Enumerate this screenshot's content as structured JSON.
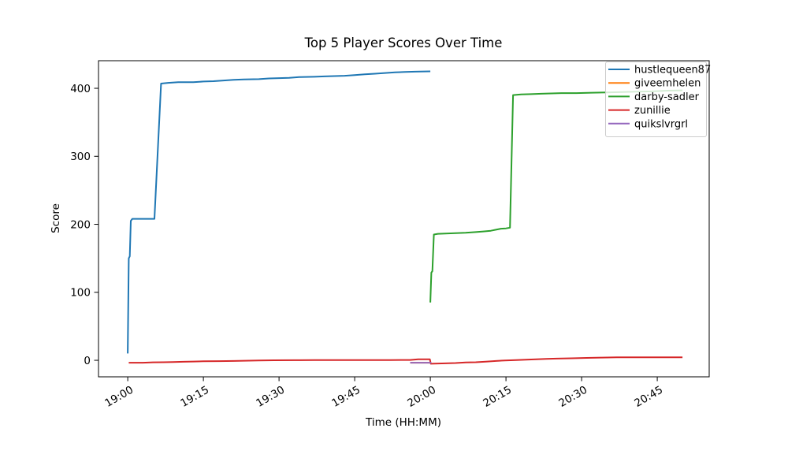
{
  "chart_data": {
    "type": "line",
    "title": "Top 5 Player Scores Over Time",
    "xlabel": "Time (HH:MM)",
    "ylabel": "Score",
    "x_unit": "minutes_after_19:00",
    "x_range_minutes": [
      -5.8,
      115.3
    ],
    "y_range": [
      -24.3,
      440.6
    ],
    "grid": false,
    "x_ticks": [
      {
        "minutes": 0,
        "label": "19:00"
      },
      {
        "minutes": 15,
        "label": "19:15"
      },
      {
        "minutes": 30,
        "label": "19:30"
      },
      {
        "minutes": 45,
        "label": "19:45"
      },
      {
        "minutes": 60,
        "label": "20:00"
      },
      {
        "minutes": 75,
        "label": "20:15"
      },
      {
        "minutes": 90,
        "label": "20:30"
      },
      {
        "minutes": 105,
        "label": "20:45"
      }
    ],
    "y_ticks": [
      0,
      100,
      200,
      300,
      400
    ],
    "legend": {
      "position": "upper right",
      "frame_color": "#cccccc",
      "fill_opacity": 0.8
    },
    "series": [
      {
        "name": "hustlequeen87",
        "color": "#1f77b4",
        "points": [
          [
            0,
            10
          ],
          [
            0.2,
            150
          ],
          [
            0.4,
            153
          ],
          [
            0.6,
            205
          ],
          [
            0.9,
            208
          ],
          [
            5.3,
            208
          ],
          [
            6.6,
            407
          ],
          [
            8,
            408
          ],
          [
            10,
            409
          ],
          [
            13,
            409
          ],
          [
            15,
            410
          ],
          [
            17,
            410.5
          ],
          [
            19,
            411.5
          ],
          [
            21,
            412.5
          ],
          [
            23,
            413
          ],
          [
            26,
            413.5
          ],
          [
            28,
            414.5
          ],
          [
            30,
            415
          ],
          [
            32,
            415.5
          ],
          [
            34,
            416.5
          ],
          [
            37,
            417
          ],
          [
            39,
            417.5
          ],
          [
            41,
            418
          ],
          [
            43,
            418.5
          ],
          [
            45,
            419.5
          ],
          [
            47,
            420.5
          ],
          [
            49,
            421.5
          ],
          [
            51,
            422.5
          ],
          [
            53,
            423.5
          ],
          [
            55,
            424
          ],
          [
            57,
            424.5
          ],
          [
            60,
            425
          ]
        ]
      },
      {
        "name": "giveemhelen",
        "color": "#ff7f0e",
        "points": [
          [
            56,
            -3.5
          ],
          [
            60.2,
            -3.5
          ]
        ]
      },
      {
        "name": "darby-sadler",
        "color": "#2ca02c",
        "points": [
          [
            60,
            85
          ],
          [
            60.2,
            129
          ],
          [
            60.4,
            131
          ],
          [
            60.7,
            185
          ],
          [
            61.5,
            186
          ],
          [
            63,
            186.5
          ],
          [
            65,
            187
          ],
          [
            67,
            187.5
          ],
          [
            69,
            188.5
          ],
          [
            70.5,
            189.5
          ],
          [
            72,
            190.5
          ],
          [
            73,
            192
          ],
          [
            74,
            193.5
          ],
          [
            75,
            194
          ],
          [
            75.8,
            195
          ],
          [
            76.4,
            390
          ],
          [
            78,
            391
          ],
          [
            80,
            391.5
          ],
          [
            82,
            392
          ],
          [
            84,
            392.5
          ],
          [
            86,
            393
          ],
          [
            89,
            393
          ],
          [
            92,
            393.5
          ],
          [
            95,
            394
          ],
          [
            98,
            394.5
          ],
          [
            101,
            395
          ],
          [
            104,
            395.5
          ],
          [
            107,
            396.5
          ],
          [
            110,
            397
          ]
        ]
      },
      {
        "name": "zunillie",
        "color": "#d62728",
        "points": [
          [
            0.2,
            -3.5
          ],
          [
            3,
            -3.5
          ],
          [
            5,
            -3
          ],
          [
            7,
            -2.8
          ],
          [
            9,
            -2.5
          ],
          [
            11,
            -2.2
          ],
          [
            13,
            -1.8
          ],
          [
            15,
            -1.5
          ],
          [
            18,
            -1.2
          ],
          [
            21,
            -1
          ],
          [
            23,
            -0.6
          ],
          [
            26,
            -0.3
          ],
          [
            29,
            0
          ],
          [
            33,
            0.2
          ],
          [
            37,
            0.3
          ],
          [
            42,
            0.3
          ],
          [
            47,
            0.4
          ],
          [
            52,
            0.4
          ],
          [
            56,
            0.5
          ],
          [
            57.6,
            1.5
          ],
          [
            59.9,
            1.5
          ],
          [
            60.1,
            -5
          ],
          [
            63,
            -4.5
          ],
          [
            65,
            -4
          ],
          [
            67,
            -3.2
          ],
          [
            69,
            -2.8
          ],
          [
            71,
            -2
          ],
          [
            73,
            -1
          ],
          [
            74.8,
            -0.2
          ],
          [
            77,
            0.3
          ],
          [
            79,
            0.8
          ],
          [
            81,
            1.5
          ],
          [
            83,
            2
          ],
          [
            85,
            2.5
          ],
          [
            88,
            3
          ],
          [
            91,
            3.5
          ],
          [
            94,
            4
          ],
          [
            97,
            4.3
          ],
          [
            101,
            4.5
          ],
          [
            105,
            4.5
          ],
          [
            110,
            4.5
          ]
        ]
      },
      {
        "name": "quikslvrgrl",
        "color": "#9467bd",
        "points": [
          [
            56,
            -3.5
          ],
          [
            60.2,
            -3.5
          ]
        ]
      }
    ]
  }
}
